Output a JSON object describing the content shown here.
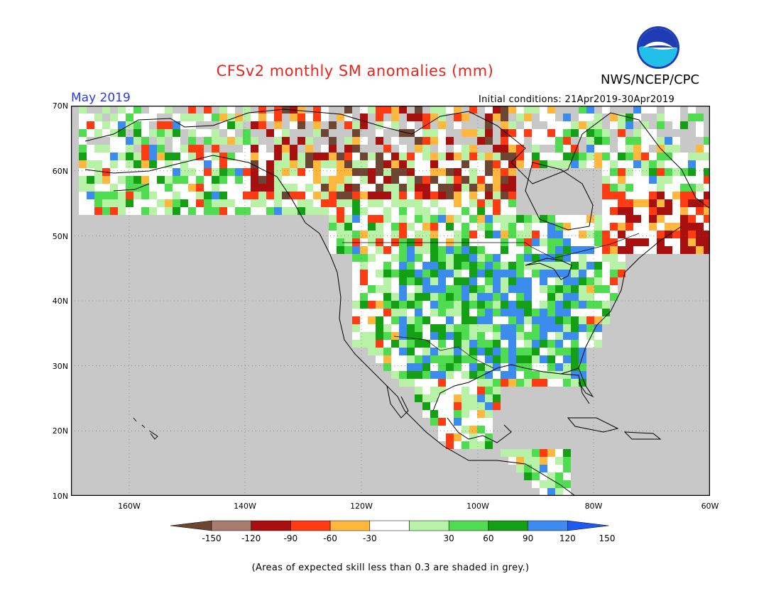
{
  "title": "CFSv2 monthly SM anomalies (mm)",
  "agency": "NWS/NCEP/CPC",
  "logo_text": "NOAA",
  "month": "May 2019",
  "initial_conditions": "Initial conditions: 21Apr2019-30Apr2019",
  "lat_ticks": [
    "70N",
    "60N",
    "50N",
    "40N",
    "30N",
    "20N",
    "10N"
  ],
  "lon_ticks": [
    "160W",
    "140W",
    "120W",
    "100W",
    "80W",
    "60W"
  ],
  "colorbar": {
    "labels": [
      "-150",
      "-120",
      "-90",
      "-60",
      "-30",
      "30",
      "60",
      "90",
      "120",
      "150"
    ],
    "colors": [
      "#6e4433",
      "#a87c6e",
      "#a80f0f",
      "#ff3b14",
      "#ffb73d",
      "#ffffff",
      "#b7f2a6",
      "#50dc50",
      "#14a014",
      "#3c8cf0",
      "#1e5af0"
    ]
  },
  "map": {
    "lat_range": [
      10,
      70
    ],
    "lon_range": [
      -170,
      -60
    ],
    "ocean_color": "#c8c8c8",
    "grid": "dotted"
  },
  "footnote": "(Areas of expected skill less than 0.3 are shaded in grey.)"
}
